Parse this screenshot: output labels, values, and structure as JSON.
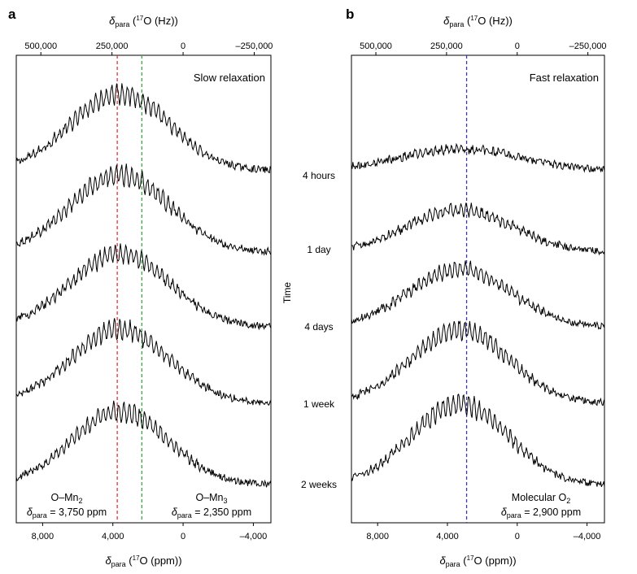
{
  "chart_data": [
    {
      "type": "line",
      "panel_label": "a",
      "title": "Slow relaxation",
      "xlabel_top": {
        "symbol": "δ",
        "sub": "para",
        "text": " (",
        "sup": "17",
        "rest": "O (Hz))"
      },
      "xlabel_bottom": {
        "symbol": "δ",
        "sub": "para",
        "text": " (",
        "sup": "17",
        "rest": "O (ppm))"
      },
      "xlim_ppm": [
        9500,
        -5000
      ],
      "xticks_ppm": [
        8000,
        4000,
        0,
        -4000
      ],
      "xtick_labels_ppm": [
        "8,000",
        "4,000",
        "0",
        "–4,000"
      ],
      "xticks_hz": [
        500000,
        250000,
        0,
        -250000
      ],
      "xtick_labels_hz": [
        "500,000",
        "250,000",
        "0",
        "–250,000"
      ],
      "ppm_per_hz": 0.0162,
      "series": [
        {
          "label": "4 hours",
          "center_ppm": 3600,
          "width_ppm": 2800,
          "height": 1.0
        },
        {
          "label": "1 day",
          "center_ppm": 3600,
          "width_ppm": 2800,
          "height": 1.0
        },
        {
          "label": "4 days",
          "center_ppm": 3600,
          "width_ppm": 2800,
          "height": 0.95
        },
        {
          "label": "1 week",
          "center_ppm": 3600,
          "width_ppm": 2800,
          "height": 0.95
        },
        {
          "label": "2 weeks",
          "center_ppm": 3600,
          "width_ppm": 2800,
          "height": 0.95
        }
      ],
      "reference_lines": [
        {
          "x": 3750,
          "color": "#e8323c",
          "label_main": "O–Mn",
          "label_sub": "2",
          "value_text": " = 3,750 ppm"
        },
        {
          "x": 2350,
          "color": "#3aa845",
          "label_main": "O–Mn",
          "label_sub": "3",
          "value_text": " = 2,350 ppm"
        }
      ],
      "annotation_symbol": "δ",
      "annotation_sub": "para"
    },
    {
      "type": "line",
      "panel_label": "b",
      "title": "Fast relaxation",
      "xlabel_top": {
        "symbol": "δ",
        "sub": "para",
        "text": " (",
        "sup": "17",
        "rest": "O (Hz))"
      },
      "xlabel_bottom": {
        "symbol": "δ",
        "sub": "para",
        "text": " (",
        "sup": "17",
        "rest": "O (ppm))"
      },
      "xlim_ppm": [
        9500,
        -5000
      ],
      "xticks_ppm": [
        8000,
        4000,
        0,
        -4000
      ],
      "xtick_labels_ppm": [
        "8,000",
        "4,000",
        "0",
        "–4,000"
      ],
      "xticks_hz": [
        500000,
        250000,
        0,
        -250000
      ],
      "xtick_labels_hz": [
        "500,000",
        "250,000",
        "0",
        "–250,000"
      ],
      "ppm_per_hz": 0.0162,
      "series": [
        {
          "label": "4 hours",
          "center_ppm": 3300,
          "width_ppm": 3500,
          "height": 0.28
        },
        {
          "label": "1 day",
          "center_ppm": 3300,
          "width_ppm": 3000,
          "height": 0.55
        },
        {
          "label": "4 days",
          "center_ppm": 3300,
          "width_ppm": 2900,
          "height": 0.75
        },
        {
          "label": "1 week",
          "center_ppm": 3300,
          "width_ppm": 2800,
          "height": 0.95
        },
        {
          "label": "2 weeks",
          "center_ppm": 3300,
          "width_ppm": 2800,
          "height": 1.05
        }
      ],
      "reference_lines": [
        {
          "x": 2900,
          "color": "#3d38b5",
          "label_main": "Molecular O",
          "label_sub": "2",
          "value_text": " = 2,900 ppm"
        }
      ],
      "annotation_symbol": "δ",
      "annotation_sub": "para"
    }
  ],
  "time_axis_label": "Time",
  "time_labels": [
    "4 hours",
    "1 day",
    "4 days",
    "1 week",
    "2 weeks"
  ]
}
